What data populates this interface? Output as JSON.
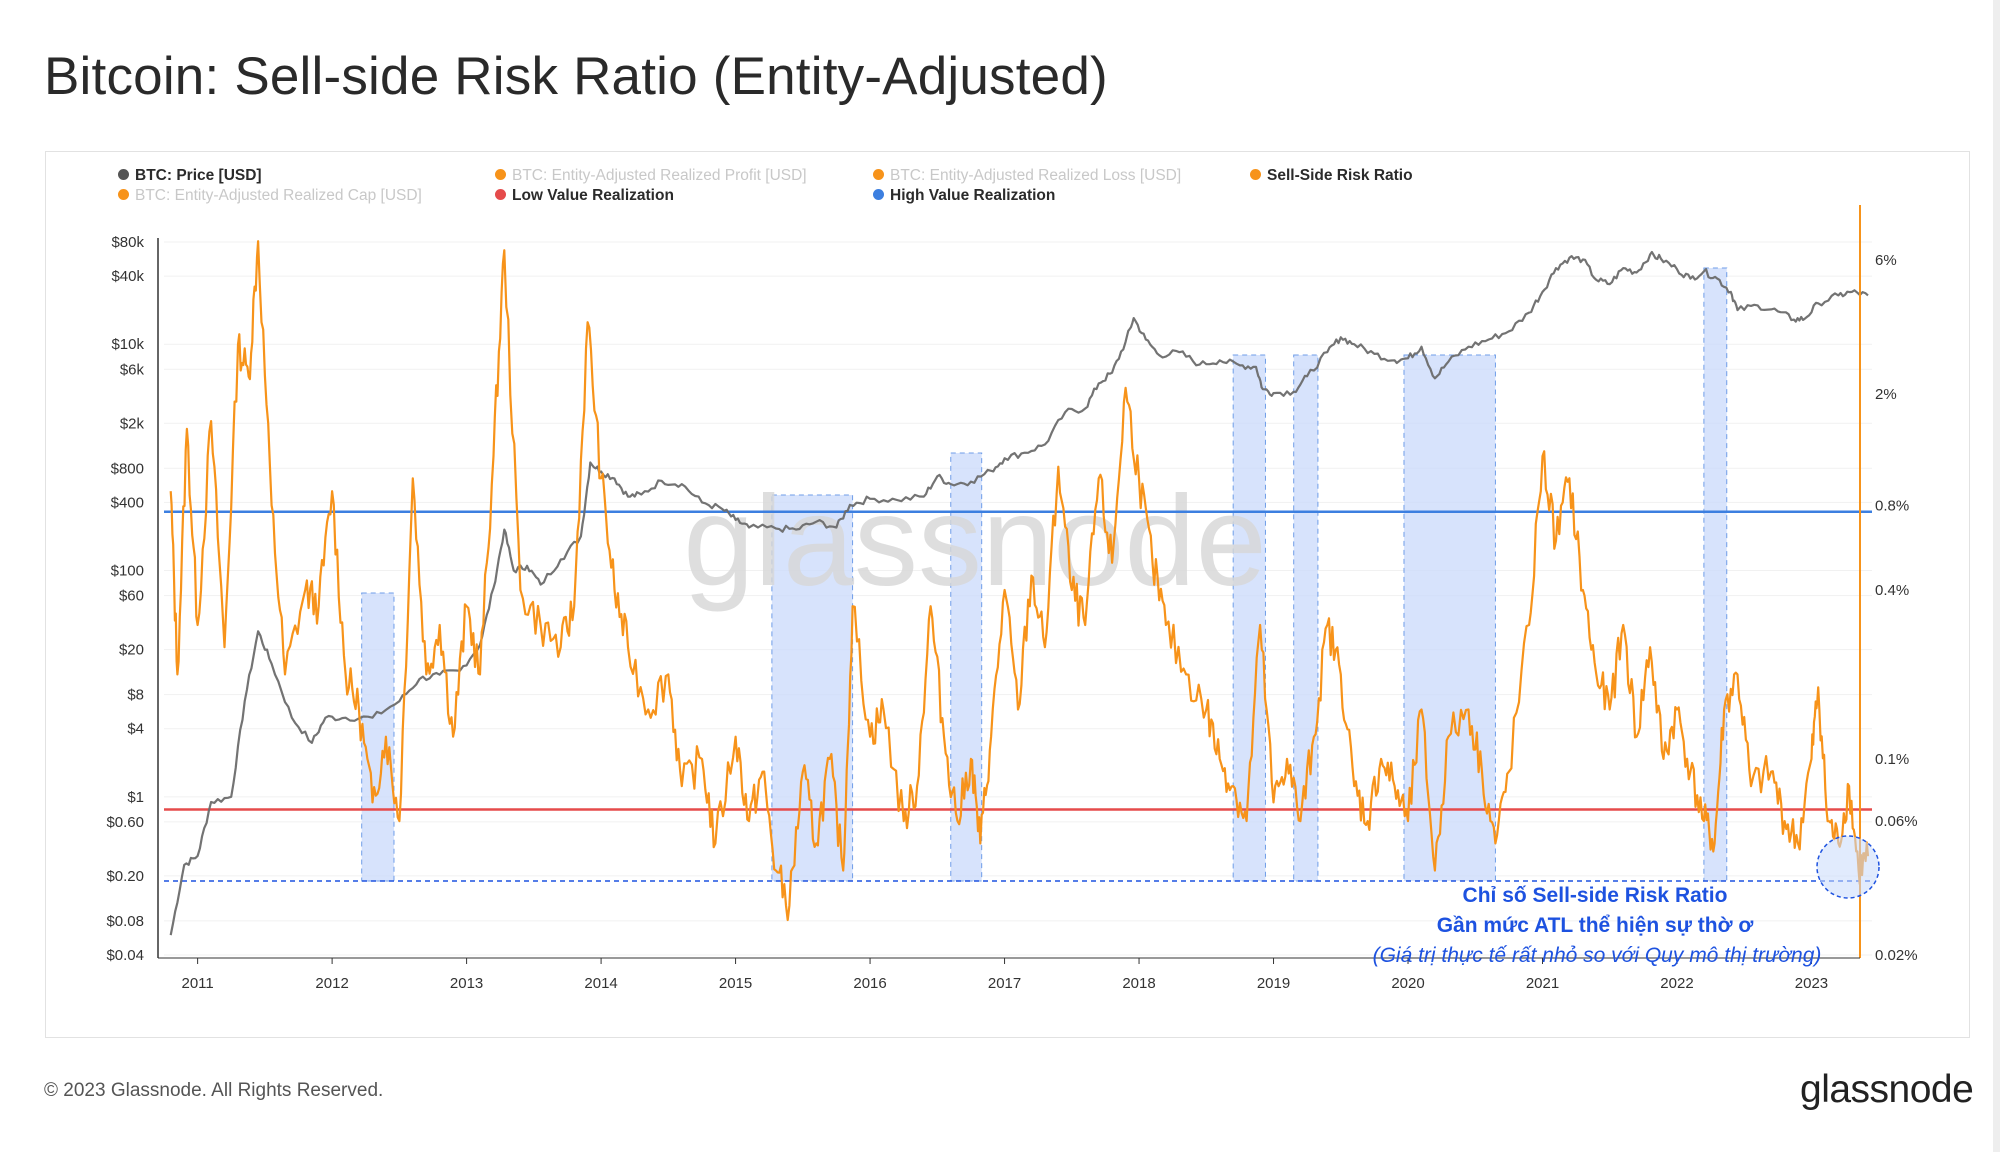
{
  "title": "Bitcoin: Sell-side Risk Ratio (Entity-Adjusted)",
  "legend": [
    {
      "label": "BTC: Price [USD]",
      "color": "#555555",
      "muted": false
    },
    {
      "label": "BTC: Entity-Adjusted Realized Profit [USD]",
      "color": "#f7931a",
      "muted": true
    },
    {
      "label": "BTC: Entity-Adjusted Realized Loss [USD]",
      "color": "#f7931a",
      "muted": true
    },
    {
      "label": "Sell-Side Risk Ratio",
      "color": "#f7931a",
      "muted": false
    },
    {
      "label": "BTC: Entity-Adjusted Realized Cap [USD]",
      "color": "#f7931a",
      "muted": true
    },
    {
      "label": "Low Value Realization",
      "color": "#e54b4b",
      "muted": false
    },
    {
      "label": "High Value Realization",
      "color": "#3c7fe0",
      "muted": false
    }
  ],
  "watermark": "glassnode",
  "annotation": {
    "line1": "Chỉ số Sell-side Risk Ratio",
    "line2": "Gần mức ATL thể hiện sự thờ ơ",
    "line3": "(Giá trị thực tế rất nhỏ so với Quy mô thị trường)"
  },
  "footer": {
    "copyright": "© 2023 Glassnode. All Rights Reserved.",
    "logo": "glassnode"
  },
  "chart_data": {
    "type": "line",
    "x_ticks": [
      "2011",
      "2012",
      "2013",
      "2014",
      "2015",
      "2016",
      "2017",
      "2018",
      "2019",
      "2020",
      "2021",
      "2022",
      "2023"
    ],
    "x_range": [
      2010.75,
      2023.45
    ],
    "left_axis": {
      "label": "BTC: Price [USD]",
      "scale": "log",
      "ticks": [
        "$0.04",
        "$0.08",
        "$0.20",
        "$0.60",
        "$1",
        "$4",
        "$8",
        "$20",
        "$60",
        "$100",
        "$400",
        "$800",
        "$2k",
        "$6k",
        "$10k",
        "$40k",
        "$80k"
      ],
      "tick_values": [
        0.04,
        0.08,
        0.2,
        0.6,
        1,
        4,
        8,
        20,
        60,
        100,
        400,
        800,
        2000,
        6000,
        10000,
        40000,
        80000
      ]
    },
    "right_axis": {
      "label": "Sell-Side Risk Ratio",
      "scale": "log",
      "ticks": [
        "0.02%",
        "0.06%",
        "0.1%",
        "0.4%",
        "0.8%",
        "2%",
        "6%"
      ],
      "tick_values": [
        0.02,
        0.06,
        0.1,
        0.4,
        0.8,
        2,
        6
      ]
    },
    "thresholds": {
      "high_value_realization_pct": 0.76,
      "low_value_realization_pct": 0.066,
      "atl_line_pct": 0.039
    },
    "shaded_regions": [
      [
        2012.22,
        2012.46
      ],
      [
        2015.27,
        2015.87
      ],
      [
        2016.6,
        2016.83
      ],
      [
        2018.7,
        2018.94
      ],
      [
        2019.15,
        2019.33
      ],
      [
        2019.97,
        2020.65
      ],
      [
        2022.2,
        2022.37
      ]
    ],
    "series": [
      {
        "name": "BTC: Price [USD]",
        "color": "#6b6b6b",
        "points": [
          [
            2010.8,
            0.06
          ],
          [
            2010.9,
            0.25
          ],
          [
            2011.0,
            0.3
          ],
          [
            2011.1,
            0.9
          ],
          [
            2011.25,
            1.0
          ],
          [
            2011.35,
            7
          ],
          [
            2011.45,
            29
          ],
          [
            2011.55,
            15
          ],
          [
            2011.7,
            5
          ],
          [
            2011.85,
            3
          ],
          [
            2011.95,
            5
          ],
          [
            2012.1,
            5
          ],
          [
            2012.3,
            5
          ],
          [
            2012.5,
            7
          ],
          [
            2012.65,
            11
          ],
          [
            2012.8,
            12
          ],
          [
            2012.95,
            13
          ],
          [
            2013.1,
            22
          ],
          [
            2013.2,
            70
          ],
          [
            2013.28,
            230
          ],
          [
            2013.35,
            100
          ],
          [
            2013.45,
            110
          ],
          [
            2013.55,
            75
          ],
          [
            2013.7,
            125
          ],
          [
            2013.85,
            200
          ],
          [
            2013.92,
            900
          ],
          [
            2014.0,
            750
          ],
          [
            2014.1,
            650
          ],
          [
            2014.2,
            450
          ],
          [
            2014.3,
            470
          ],
          [
            2014.45,
            620
          ],
          [
            2014.6,
            580
          ],
          [
            2014.75,
            400
          ],
          [
            2014.9,
            350
          ],
          [
            2015.0,
            280
          ],
          [
            2015.1,
            240
          ],
          [
            2015.3,
            235
          ],
          [
            2015.45,
            230
          ],
          [
            2015.6,
            270
          ],
          [
            2015.75,
            240
          ],
          [
            2015.85,
            380
          ],
          [
            2016.0,
            430
          ],
          [
            2016.2,
            420
          ],
          [
            2016.4,
            450
          ],
          [
            2016.5,
            680
          ],
          [
            2016.6,
            580
          ],
          [
            2016.75,
            610
          ],
          [
            2016.9,
            760
          ],
          [
            2017.0,
            980
          ],
          [
            2017.15,
            1100
          ],
          [
            2017.3,
            1300
          ],
          [
            2017.45,
            2500
          ],
          [
            2017.6,
            2700
          ],
          [
            2017.7,
            4500
          ],
          [
            2017.8,
            5600
          ],
          [
            2017.9,
            10500
          ],
          [
            2017.96,
            17000
          ],
          [
            2018.05,
            11000
          ],
          [
            2018.15,
            8000
          ],
          [
            2018.3,
            8500
          ],
          [
            2018.45,
            6600
          ],
          [
            2018.6,
            7200
          ],
          [
            2018.75,
            6500
          ],
          [
            2018.87,
            6300
          ],
          [
            2018.92,
            4000
          ],
          [
            2019.0,
            3700
          ],
          [
            2019.15,
            3800
          ],
          [
            2019.25,
            5200
          ],
          [
            2019.4,
            8500
          ],
          [
            2019.5,
            11500
          ],
          [
            2019.6,
            10000
          ],
          [
            2019.75,
            8200
          ],
          [
            2019.9,
            7200
          ],
          [
            2020.0,
            7500
          ],
          [
            2020.1,
            9500
          ],
          [
            2020.2,
            5000
          ],
          [
            2020.3,
            7000
          ],
          [
            2020.45,
            9500
          ],
          [
            2020.6,
            11000
          ],
          [
            2020.75,
            13000
          ],
          [
            2020.9,
            19000
          ],
          [
            2021.0,
            29000
          ],
          [
            2021.1,
            47000
          ],
          [
            2021.2,
            58000
          ],
          [
            2021.3,
            56000
          ],
          [
            2021.4,
            37000
          ],
          [
            2021.5,
            34000
          ],
          [
            2021.6,
            47000
          ],
          [
            2021.7,
            43000
          ],
          [
            2021.8,
            62000
          ],
          [
            2021.88,
            57000
          ],
          [
            2022.0,
            46000
          ],
          [
            2022.1,
            38000
          ],
          [
            2022.2,
            44000
          ],
          [
            2022.3,
            38000
          ],
          [
            2022.4,
            29000
          ],
          [
            2022.45,
            20000
          ],
          [
            2022.6,
            22000
          ],
          [
            2022.75,
            19500
          ],
          [
            2022.87,
            16500
          ],
          [
            2022.95,
            16800
          ],
          [
            2023.05,
            23000
          ],
          [
            2023.2,
            27000
          ],
          [
            2023.3,
            29000
          ],
          [
            2023.42,
            27000
          ]
        ]
      },
      {
        "name": "Sell-Side Risk Ratio",
        "color": "#f7931a",
        "points": [
          [
            2010.8,
            0.9
          ],
          [
            2010.85,
            0.2
          ],
          [
            2010.92,
            1.5
          ],
          [
            2011.0,
            0.3
          ],
          [
            2011.1,
            1.6
          ],
          [
            2011.2,
            0.25
          ],
          [
            2011.3,
            3.0
          ],
          [
            2011.38,
            2.3
          ],
          [
            2011.45,
            7.0
          ],
          [
            2011.55,
            0.8
          ],
          [
            2011.65,
            0.2
          ],
          [
            2011.8,
            0.4
          ],
          [
            2011.9,
            0.35
          ],
          [
            2012.0,
            0.9
          ],
          [
            2012.1,
            0.2
          ],
          [
            2012.2,
            0.15
          ],
          [
            2012.3,
            0.07
          ],
          [
            2012.4,
            0.12
          ],
          [
            2012.5,
            0.06
          ],
          [
            2012.6,
            1.0
          ],
          [
            2012.7,
            0.2
          ],
          [
            2012.8,
            0.3
          ],
          [
            2012.9,
            0.12
          ],
          [
            2013.0,
            0.35
          ],
          [
            2013.1,
            0.2
          ],
          [
            2013.2,
            1.2
          ],
          [
            2013.28,
            6.5
          ],
          [
            2013.4,
            0.4
          ],
          [
            2013.55,
            0.3
          ],
          [
            2013.7,
            0.25
          ],
          [
            2013.8,
            0.35
          ],
          [
            2013.9,
            3.6
          ],
          [
            2014.0,
            1.0
          ],
          [
            2014.1,
            0.4
          ],
          [
            2014.2,
            0.25
          ],
          [
            2014.35,
            0.15
          ],
          [
            2014.5,
            0.2
          ],
          [
            2014.6,
            0.08
          ],
          [
            2014.75,
            0.1
          ],
          [
            2014.85,
            0.05
          ],
          [
            2015.0,
            0.12
          ],
          [
            2015.1,
            0.06
          ],
          [
            2015.2,
            0.09
          ],
          [
            2015.3,
            0.04
          ],
          [
            2015.4,
            0.03
          ],
          [
            2015.5,
            0.09
          ],
          [
            2015.6,
            0.05
          ],
          [
            2015.7,
            0.1
          ],
          [
            2015.8,
            0.04
          ],
          [
            2015.87,
            0.35
          ],
          [
            2016.0,
            0.12
          ],
          [
            2016.1,
            0.15
          ],
          [
            2016.25,
            0.06
          ],
          [
            2016.35,
            0.08
          ],
          [
            2016.45,
            0.35
          ],
          [
            2016.55,
            0.12
          ],
          [
            2016.65,
            0.06
          ],
          [
            2016.75,
            0.1
          ],
          [
            2016.82,
            0.05
          ],
          [
            2016.9,
            0.12
          ],
          [
            2017.0,
            0.4
          ],
          [
            2017.1,
            0.15
          ],
          [
            2017.2,
            0.45
          ],
          [
            2017.3,
            0.25
          ],
          [
            2017.4,
            1.1
          ],
          [
            2017.5,
            0.4
          ],
          [
            2017.6,
            0.3
          ],
          [
            2017.7,
            1.0
          ],
          [
            2017.8,
            0.5
          ],
          [
            2017.9,
            2.1
          ],
          [
            2018.0,
            1.0
          ],
          [
            2018.1,
            0.5
          ],
          [
            2018.2,
            0.3
          ],
          [
            2018.35,
            0.2
          ],
          [
            2018.5,
            0.15
          ],
          [
            2018.6,
            0.1
          ],
          [
            2018.7,
            0.08
          ],
          [
            2018.8,
            0.06
          ],
          [
            2018.9,
            0.3
          ],
          [
            2019.0,
            0.07
          ],
          [
            2019.1,
            0.1
          ],
          [
            2019.2,
            0.06
          ],
          [
            2019.3,
            0.12
          ],
          [
            2019.4,
            0.3
          ],
          [
            2019.5,
            0.2
          ],
          [
            2019.6,
            0.08
          ],
          [
            2019.7,
            0.06
          ],
          [
            2019.8,
            0.1
          ],
          [
            2019.9,
            0.08
          ],
          [
            2020.0,
            0.06
          ],
          [
            2020.1,
            0.15
          ],
          [
            2020.2,
            0.04
          ],
          [
            2020.3,
            0.12
          ],
          [
            2020.45,
            0.15
          ],
          [
            2020.55,
            0.09
          ],
          [
            2020.65,
            0.05
          ],
          [
            2020.75,
            0.09
          ],
          [
            2020.9,
            0.3
          ],
          [
            2021.0,
            1.2
          ],
          [
            2021.1,
            0.6
          ],
          [
            2021.2,
            1.0
          ],
          [
            2021.3,
            0.4
          ],
          [
            2021.4,
            0.2
          ],
          [
            2021.5,
            0.15
          ],
          [
            2021.6,
            0.3
          ],
          [
            2021.7,
            0.12
          ],
          [
            2021.8,
            0.25
          ],
          [
            2021.9,
            0.1
          ],
          [
            2022.0,
            0.15
          ],
          [
            2022.1,
            0.09
          ],
          [
            2022.2,
            0.06
          ],
          [
            2022.28,
            0.05
          ],
          [
            2022.35,
            0.15
          ],
          [
            2022.45,
            0.2
          ],
          [
            2022.55,
            0.08
          ],
          [
            2022.7,
            0.09
          ],
          [
            2022.8,
            0.06
          ],
          [
            2022.9,
            0.05
          ],
          [
            2023.0,
            0.1
          ],
          [
            2023.05,
            0.18
          ],
          [
            2023.12,
            0.06
          ],
          [
            2023.2,
            0.05
          ],
          [
            2023.28,
            0.08
          ],
          [
            2023.35,
            0.04
          ],
          [
            2023.42,
            0.045
          ]
        ]
      }
    ]
  }
}
